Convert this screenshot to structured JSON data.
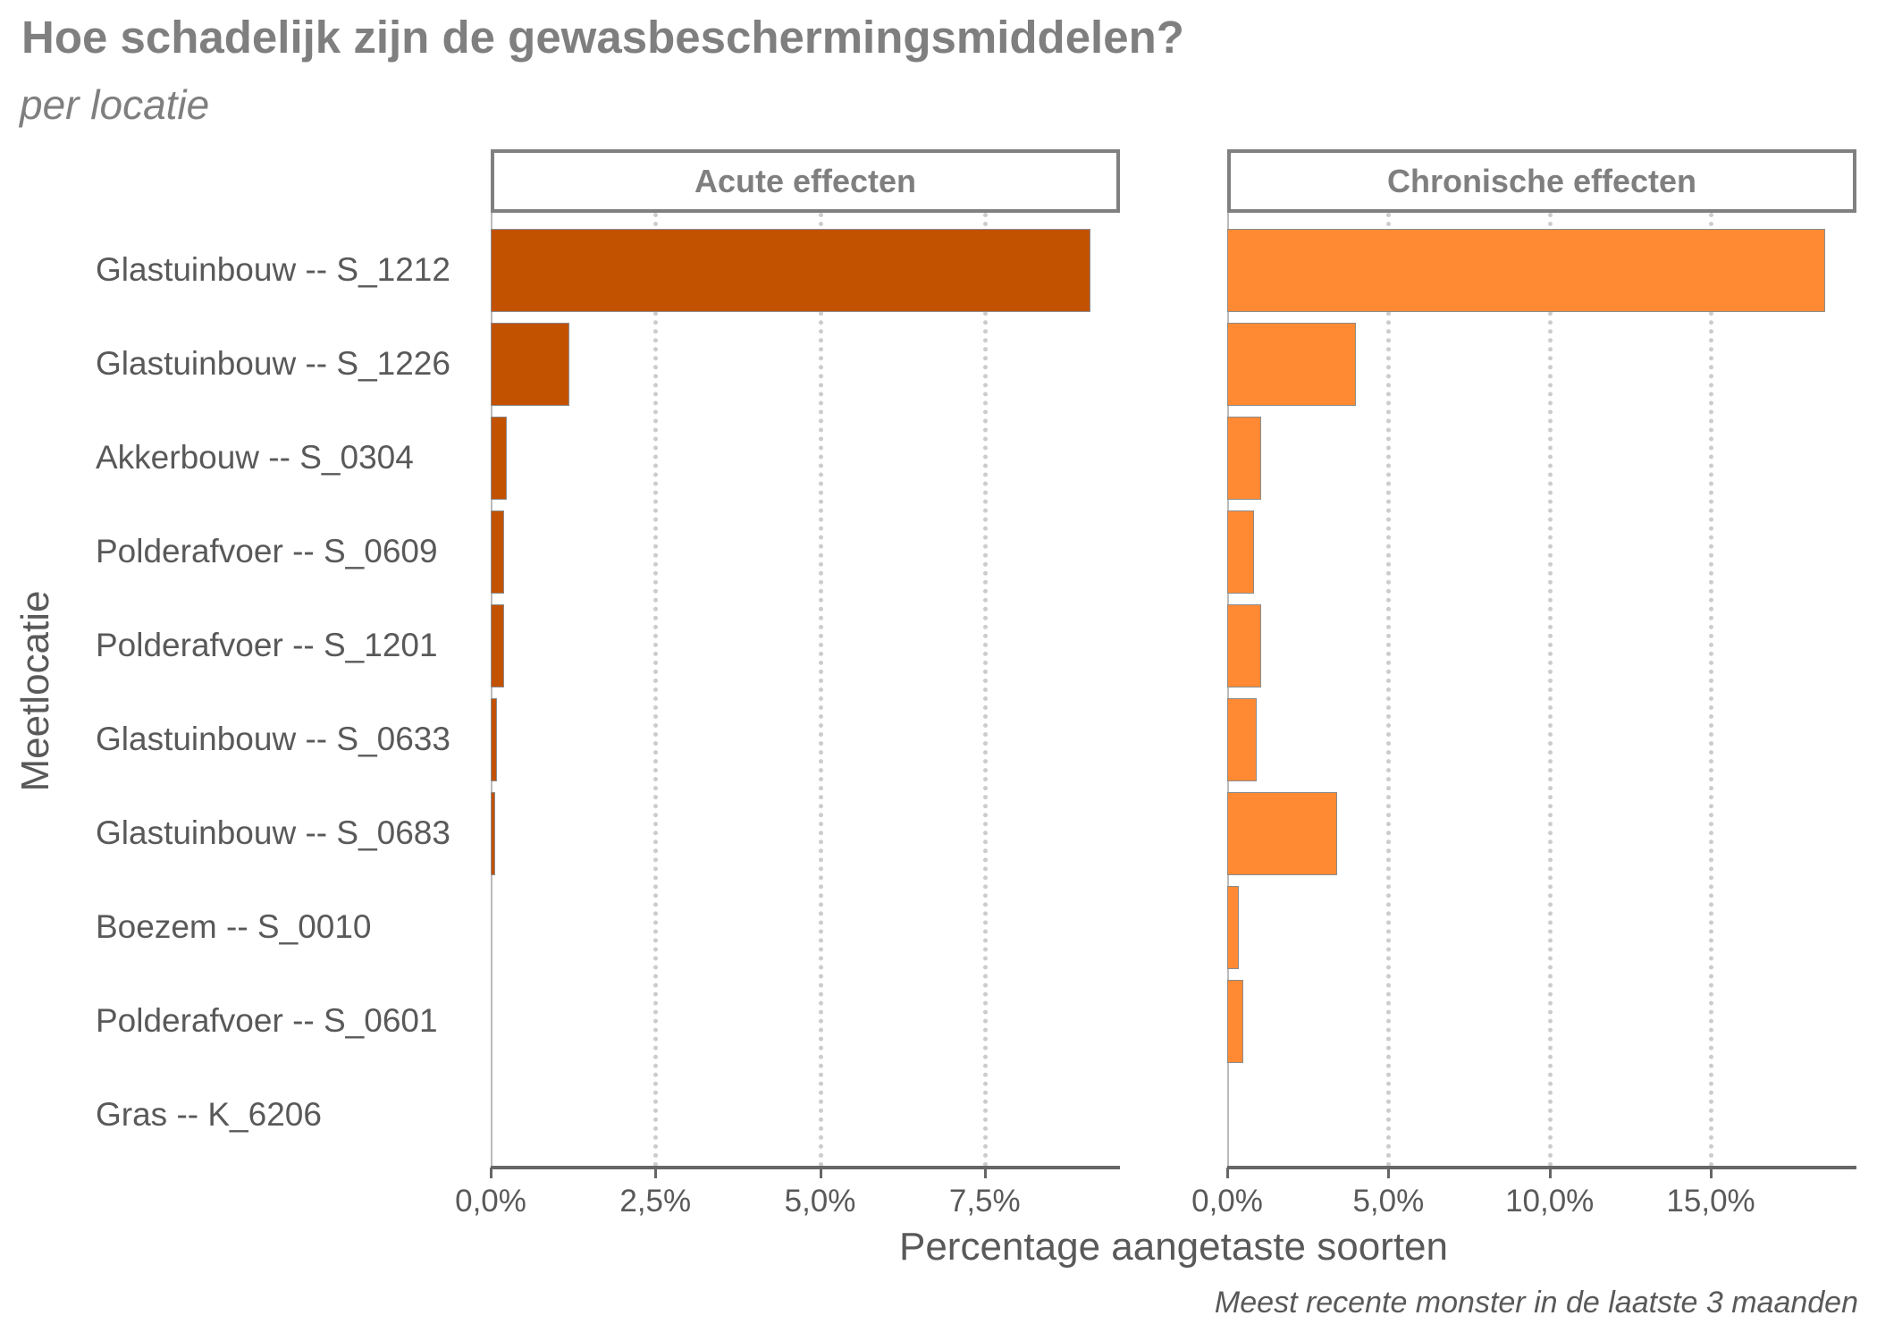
{
  "title": "Hoe schadelijk zijn de gewasbeschermingsmiddelen?",
  "subtitle": "per locatie",
  "y_axis_title": "Meetlocatie",
  "x_axis_title": "Percentage aangetaste soorten",
  "caption": "Meest recente monster in de laatste 3 maanden",
  "colors": {
    "acute": "#C25100",
    "chronic": "#FF8A33",
    "text": "#595959",
    "title": "#7F7F7F",
    "grid": "#CCCCCC"
  },
  "panels": [
    {
      "label": "Acute effecten",
      "ticks": [
        "0,0%",
        "2,5%",
        "5,0%",
        "7,5%"
      ]
    },
    {
      "label": "Chronische effecten",
      "ticks": [
        "0,0%",
        "5,0%",
        "10,0%",
        "15,0%"
      ]
    }
  ],
  "rows": [
    {
      "label": "Glastuinbouw -- S_1212"
    },
    {
      "label": "Glastuinbouw -- S_1226"
    },
    {
      "label": "Akkerbouw -- S_0304"
    },
    {
      "label": "Polderafvoer -- S_0609"
    },
    {
      "label": "Polderafvoer -- S_1201"
    },
    {
      "label": "Glastuinbouw -- S_0633"
    },
    {
      "label": "Glastuinbouw -- S_0683"
    },
    {
      "label": "Boezem -- S_0010"
    },
    {
      "label": "Polderafvoer -- S_0601"
    },
    {
      "label": "Gras -- K_6206"
    }
  ],
  "chart_data": {
    "type": "bar",
    "orientation": "horizontal",
    "title": "Hoe schadelijk zijn de gewasbeschermingsmiddelen?",
    "subtitle": "per locatie",
    "xlabel": "Percentage aangetaste soorten",
    "ylabel": "Meetlocatie",
    "caption": "Meest recente monster in de laatste 3 maanden",
    "categories": [
      "Glastuinbouw -- S_1212",
      "Glastuinbouw -- S_1226",
      "Akkerbouw -- S_0304",
      "Polderafvoer -- S_0609",
      "Polderafvoer -- S_1201",
      "Glastuinbouw -- S_0633",
      "Glastuinbouw -- S_0683",
      "Boezem -- S_0010",
      "Polderafvoer -- S_0601",
      "Gras -- K_6206"
    ],
    "series": [
      {
        "name": "Acute effecten",
        "values": [
          9.1,
          1.19,
          0.24,
          0.21,
          0.21,
          0.1,
          0.07,
          0.0,
          0.0,
          0.0
        ],
        "xlim": [
          0,
          9.55
        ],
        "ticks": [
          0,
          2.5,
          5.0,
          7.5
        ]
      },
      {
        "name": "Chronische effecten",
        "values": [
          18.55,
          4.0,
          1.04,
          0.82,
          1.04,
          0.91,
          3.4,
          0.35,
          0.49,
          0.0
        ],
        "xlim": [
          0,
          19.5
        ],
        "ticks": [
          0,
          5,
          10,
          15
        ]
      }
    ],
    "facets": [
      "Acute effecten",
      "Chronische effecten"
    ],
    "grid": "vertical dotted",
    "legend": "none"
  }
}
